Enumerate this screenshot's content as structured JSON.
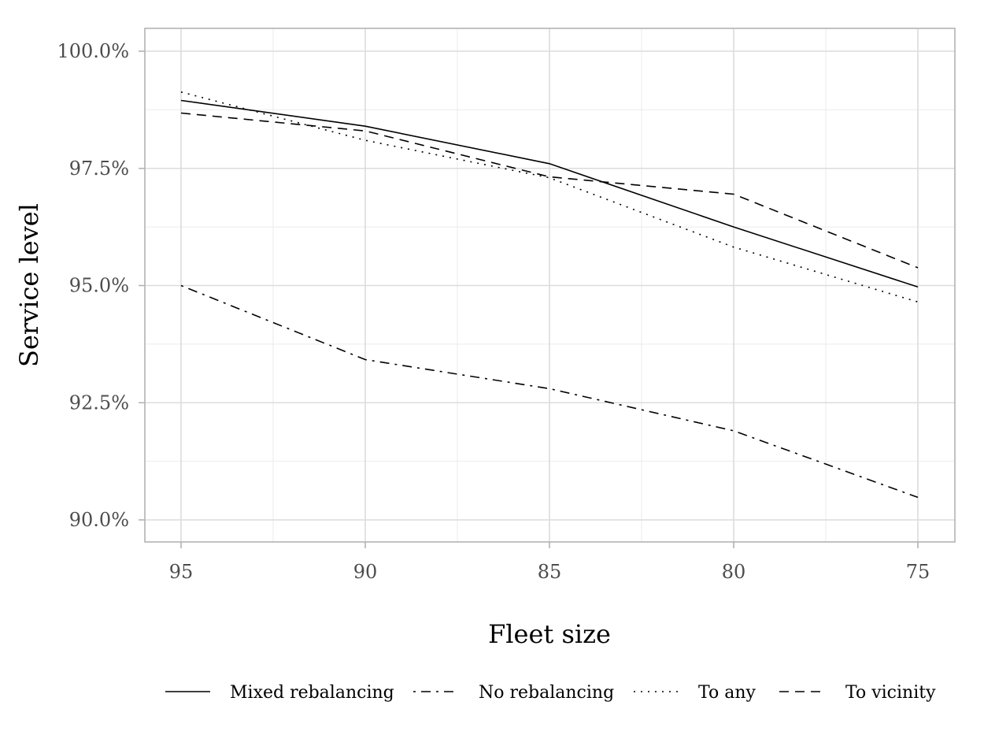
{
  "chart_data": {
    "type": "line",
    "title": "",
    "xlabel": "Fleet size",
    "ylabel": "Service level",
    "x": [
      95,
      90,
      85,
      80,
      75
    ],
    "x_ticks": [
      "95",
      "90",
      "85",
      "80",
      "75"
    ],
    "xlim": [
      96,
      75
    ],
    "y_ticks": [
      "90.0%",
      "92.5%",
      "95.0%",
      "97.5%",
      "100.0%"
    ],
    "y_tick_values": [
      90.0,
      92.5,
      95.0,
      97.5,
      100.0
    ],
    "ylim": [
      89.5,
      100.5
    ],
    "grid": true,
    "legend_position": "bottom",
    "series": [
      {
        "name": "Mixed rebalancing",
        "dash": "solid",
        "values": [
          98.95,
          98.4,
          97.6,
          96.25,
          94.97
        ]
      },
      {
        "name": "No rebalancing",
        "dash": "dotdash",
        "values": [
          95.0,
          93.42,
          92.8,
          91.9,
          90.48
        ]
      },
      {
        "name": "To any",
        "dash": "dotted",
        "values": [
          99.13,
          98.1,
          97.3,
          95.82,
          94.65
        ]
      },
      {
        "name": "To vicinity",
        "dash": "dashed",
        "values": [
          98.68,
          98.3,
          97.32,
          96.95,
          95.38
        ]
      }
    ]
  }
}
